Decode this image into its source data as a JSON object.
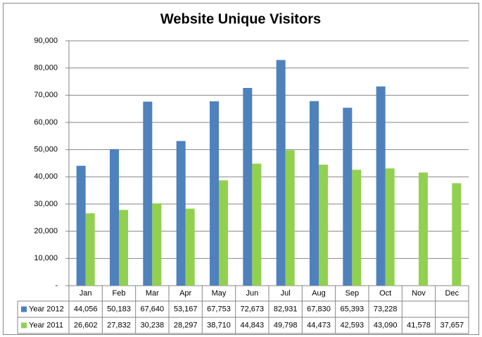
{
  "chart_data": {
    "type": "bar",
    "title": "Website Unique Visitors",
    "categories": [
      "Jan",
      "Feb",
      "Mar",
      "Apr",
      "May",
      "Jun",
      "Jul",
      "Aug",
      "Sep",
      "Oct",
      "Nov",
      "Dec"
    ],
    "series": [
      {
        "name": "Year 2012",
        "color": "#4f81bd",
        "values": [
          44056,
          50183,
          67640,
          53167,
          67753,
          72673,
          82931,
          67830,
          65393,
          73228,
          null,
          null
        ],
        "value_labels": [
          "44,056",
          "50,183",
          "67,640",
          "53,167",
          "67,753",
          "72,673",
          "82,931",
          "67,830",
          "65,393",
          "73,228",
          null,
          null
        ]
      },
      {
        "name": "Year 2011",
        "color": "#92d050",
        "values": [
          26602,
          27832,
          30238,
          28297,
          38710,
          44843,
          49798,
          44473,
          42593,
          43090,
          41578,
          37657
        ],
        "value_labels": [
          "26,602",
          "27,832",
          "30,238",
          "28,297",
          "38,710",
          "44,843",
          "49,798",
          "44,473",
          "42,593",
          "43,090",
          "41,578",
          "37,657"
        ]
      }
    ],
    "ylim": [
      0,
      90000
    ],
    "yticks": [
      {
        "value": 0,
        "label": "-"
      },
      {
        "value": 10000,
        "label": "10,000"
      },
      {
        "value": 20000,
        "label": "20,000"
      },
      {
        "value": 30000,
        "label": "30,000"
      },
      {
        "value": 40000,
        "label": "40,000"
      },
      {
        "value": 50000,
        "label": "50,000"
      },
      {
        "value": 60000,
        "label": "60,000"
      },
      {
        "value": 70000,
        "label": "70,000"
      },
      {
        "value": 80000,
        "label": "80,000"
      },
      {
        "value": 90000,
        "label": "90,000"
      }
    ],
    "grid": true
  }
}
